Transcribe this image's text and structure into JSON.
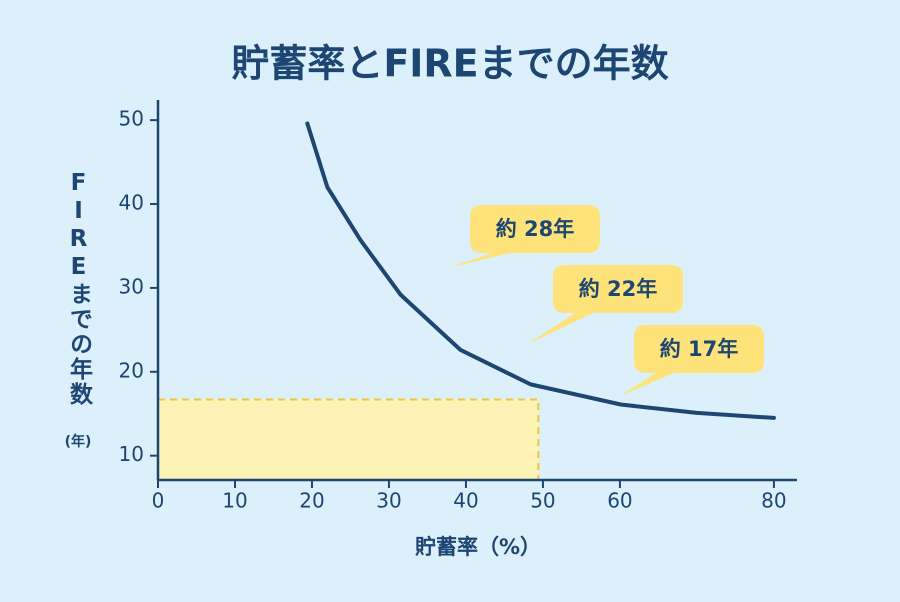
{
  "chart_data": {
    "type": "line",
    "title": "貯蓄率とFIREまでの年数",
    "x_label": "貯蓄率（%）",
    "y_label": "FIREまでの年数",
    "y_unit": "(年)",
    "x": [
      19.4,
      22,
      26.3,
      31.5,
      39.3,
      48.4,
      60.1,
      70,
      80
    ],
    "values": [
      49.6,
      42,
      35.7,
      29.2,
      22.6,
      18.5,
      16.1,
      15.1,
      14.5
    ],
    "color": "#1d4673",
    "highlight": {
      "x": 49.4,
      "y": 16.7,
      "color": "#fdf3b4"
    },
    "annotations": [
      "約 28年",
      "約 22年",
      "約 17年"
    ],
    "xlim": [
      0,
      83
    ],
    "xticks": [
      0,
      10,
      20,
      30,
      40,
      50,
      60,
      80
    ],
    "ylim": [
      7.1,
      52.4
    ],
    "yticks": [
      10,
      20,
      30,
      40,
      50
    ]
  }
}
